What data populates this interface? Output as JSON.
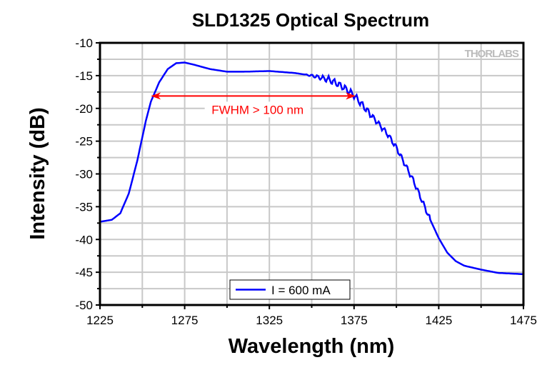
{
  "chart_data": {
    "type": "line",
    "title": "SLD1325 Optical Spectrum",
    "xlabel": "Wavelength (nm)",
    "ylabel": "Intensity (dB)",
    "xlim": [
      1225,
      1475
    ],
    "ylim": [
      -50,
      -10
    ],
    "xticks": [
      "1225",
      "1275",
      "1325",
      "1375",
      "1425",
      "1475"
    ],
    "yticks": [
      "-10",
      "-15",
      "-20",
      "-25",
      "-30",
      "-35",
      "-40",
      "-45",
      "-50"
    ],
    "grid": true,
    "legend_position": "bottom-center",
    "series": [
      {
        "name": "I = 600 mA",
        "color": "#0000ff",
        "x": [
          1225,
          1232,
          1237,
          1242,
          1247,
          1252,
          1255,
          1260,
          1265,
          1270,
          1275,
          1280,
          1290,
          1300,
          1310,
          1325,
          1340,
          1350,
          1360,
          1365,
          1370,
          1375,
          1380,
          1385,
          1390,
          1395,
          1400,
          1405,
          1410,
          1415,
          1420,
          1425,
          1430,
          1435,
          1440,
          1450,
          1460,
          1475
        ],
        "y": [
          -37.3,
          -37.0,
          -36,
          -33,
          -28,
          -22,
          -19,
          -16,
          -14,
          -13.1,
          -13.0,
          -13.3,
          -14.0,
          -14.4,
          -14.4,
          -14.3,
          -14.6,
          -15.0,
          -15.6,
          -16.2,
          -17,
          -18,
          -19.5,
          -21,
          -22.5,
          -24,
          -26,
          -28.5,
          -31,
          -34,
          -37,
          -39.8,
          -42,
          -43.3,
          -44,
          -44.6,
          -45.1,
          -45.3
        ]
      }
    ],
    "annotations": [
      {
        "text": "FWHM > 100 nm",
        "color": "#ff0000",
        "x_start": 1255,
        "x_end": 1376,
        "y": -18.1
      }
    ],
    "watermark": "THORLABS"
  }
}
